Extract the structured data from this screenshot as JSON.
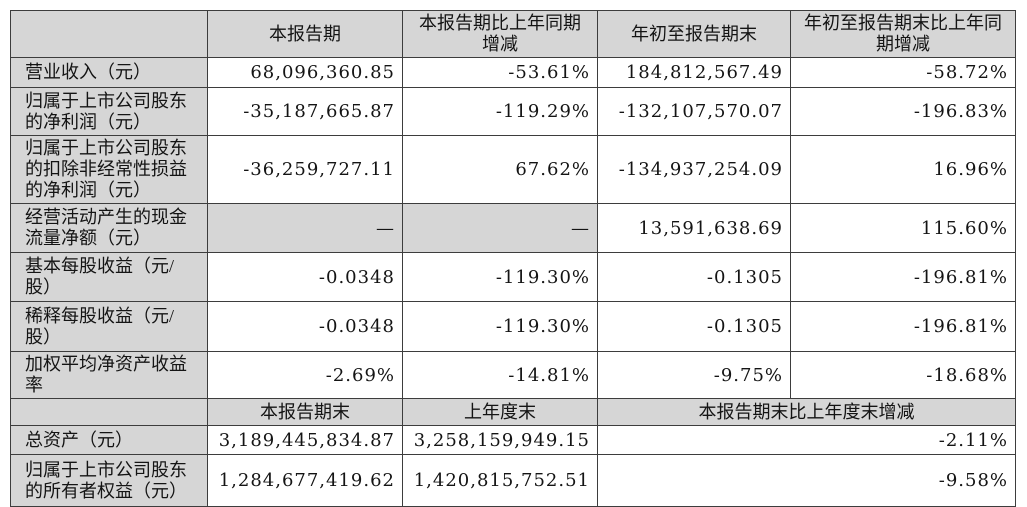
{
  "table": {
    "header1": [
      "",
      "本报告期",
      "本报告期比上年同期增减",
      "年初至报告期末",
      "年初至报告期末比上年同期增减"
    ],
    "rows1": [
      {
        "label": "营业收入（元）",
        "values": [
          "68,096,360.85",
          "-53.61%",
          "184,812,567.49",
          "-58.72%"
        ]
      },
      {
        "label": "归属于上市公司股东的净利润（元）",
        "values": [
          "-35,187,665.87",
          "-119.29%",
          "-132,107,570.07",
          "-196.83%"
        ]
      },
      {
        "label": "归属于上市公司股东的扣除非经常性损益的净利润（元）",
        "values": [
          "-36,259,727.11",
          "67.62%",
          "-134,937,254.09",
          "16.96%"
        ]
      },
      {
        "label": "经营活动产生的现金流量净额（元）",
        "values": [
          "—",
          "—",
          "13,591,638.69",
          "115.60%"
        ],
        "shaded": [
          0,
          1
        ]
      },
      {
        "label": "基本每股收益（元/股）",
        "values": [
          "-0.0348",
          "-119.30%",
          "-0.1305",
          "-196.81%"
        ]
      },
      {
        "label": "稀释每股收益（元/股）",
        "values": [
          "-0.0348",
          "-119.30%",
          "-0.1305",
          "-196.81%"
        ]
      },
      {
        "label": "加权平均净资产收益率",
        "values": [
          "-2.69%",
          "-14.81%",
          "-9.75%",
          "-18.68%"
        ]
      }
    ],
    "header2": [
      "",
      "本报告期末",
      "上年度末",
      "本报告期末比上年度末增减"
    ],
    "rows2": [
      {
        "label": "总资产（元）",
        "values": [
          "3,189,445,834.87",
          "3,258,159,949.15",
          "-2.11%"
        ]
      },
      {
        "label": "归属于上市公司股东的所有者权益（元）",
        "values": [
          "1,284,677,419.62",
          "1,420,815,752.51",
          "-9.58%"
        ]
      }
    ]
  }
}
